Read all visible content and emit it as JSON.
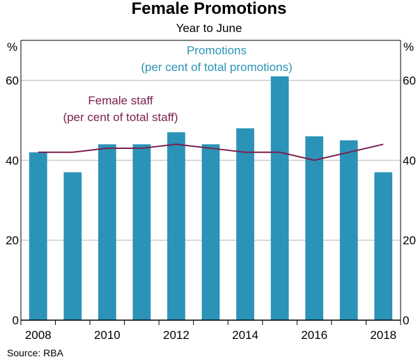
{
  "chart_data": {
    "type": "bar",
    "title": "Female Promotions",
    "subtitle": "Year to June",
    "y_unit_left": "%",
    "y_unit_right": "%",
    "ylim": [
      0,
      70
    ],
    "y_ticks": [
      0,
      20,
      40,
      60
    ],
    "x_ticks": [
      2008,
      2010,
      2012,
      2014,
      2016,
      2018
    ],
    "categories": [
      2008,
      2009,
      2010,
      2011,
      2012,
      2013,
      2014,
      2015,
      2016,
      2017,
      2018
    ],
    "series": [
      {
        "type": "bar",
        "values": [
          42,
          37,
          44,
          44,
          47,
          44,
          48,
          61,
          46,
          45,
          37
        ],
        "color": "#2b93b7",
        "label_lines": [
          "Promotions",
          "(per cent of total promotions)"
        ]
      },
      {
        "type": "line",
        "values": [
          42,
          42,
          43,
          43,
          44,
          43,
          42,
          42,
          40,
          42,
          44
        ],
        "color": "#7b1f4e",
        "label_lines": [
          "Female staff",
          "(per cent of total staff)"
        ]
      }
    ],
    "source": "Source:   RBA",
    "grid": "horizontal",
    "colors": {
      "bar": "#2b93b7",
      "line": "#7b1f4e",
      "grid": "#b8b8b8",
      "axis": "#000000"
    }
  }
}
